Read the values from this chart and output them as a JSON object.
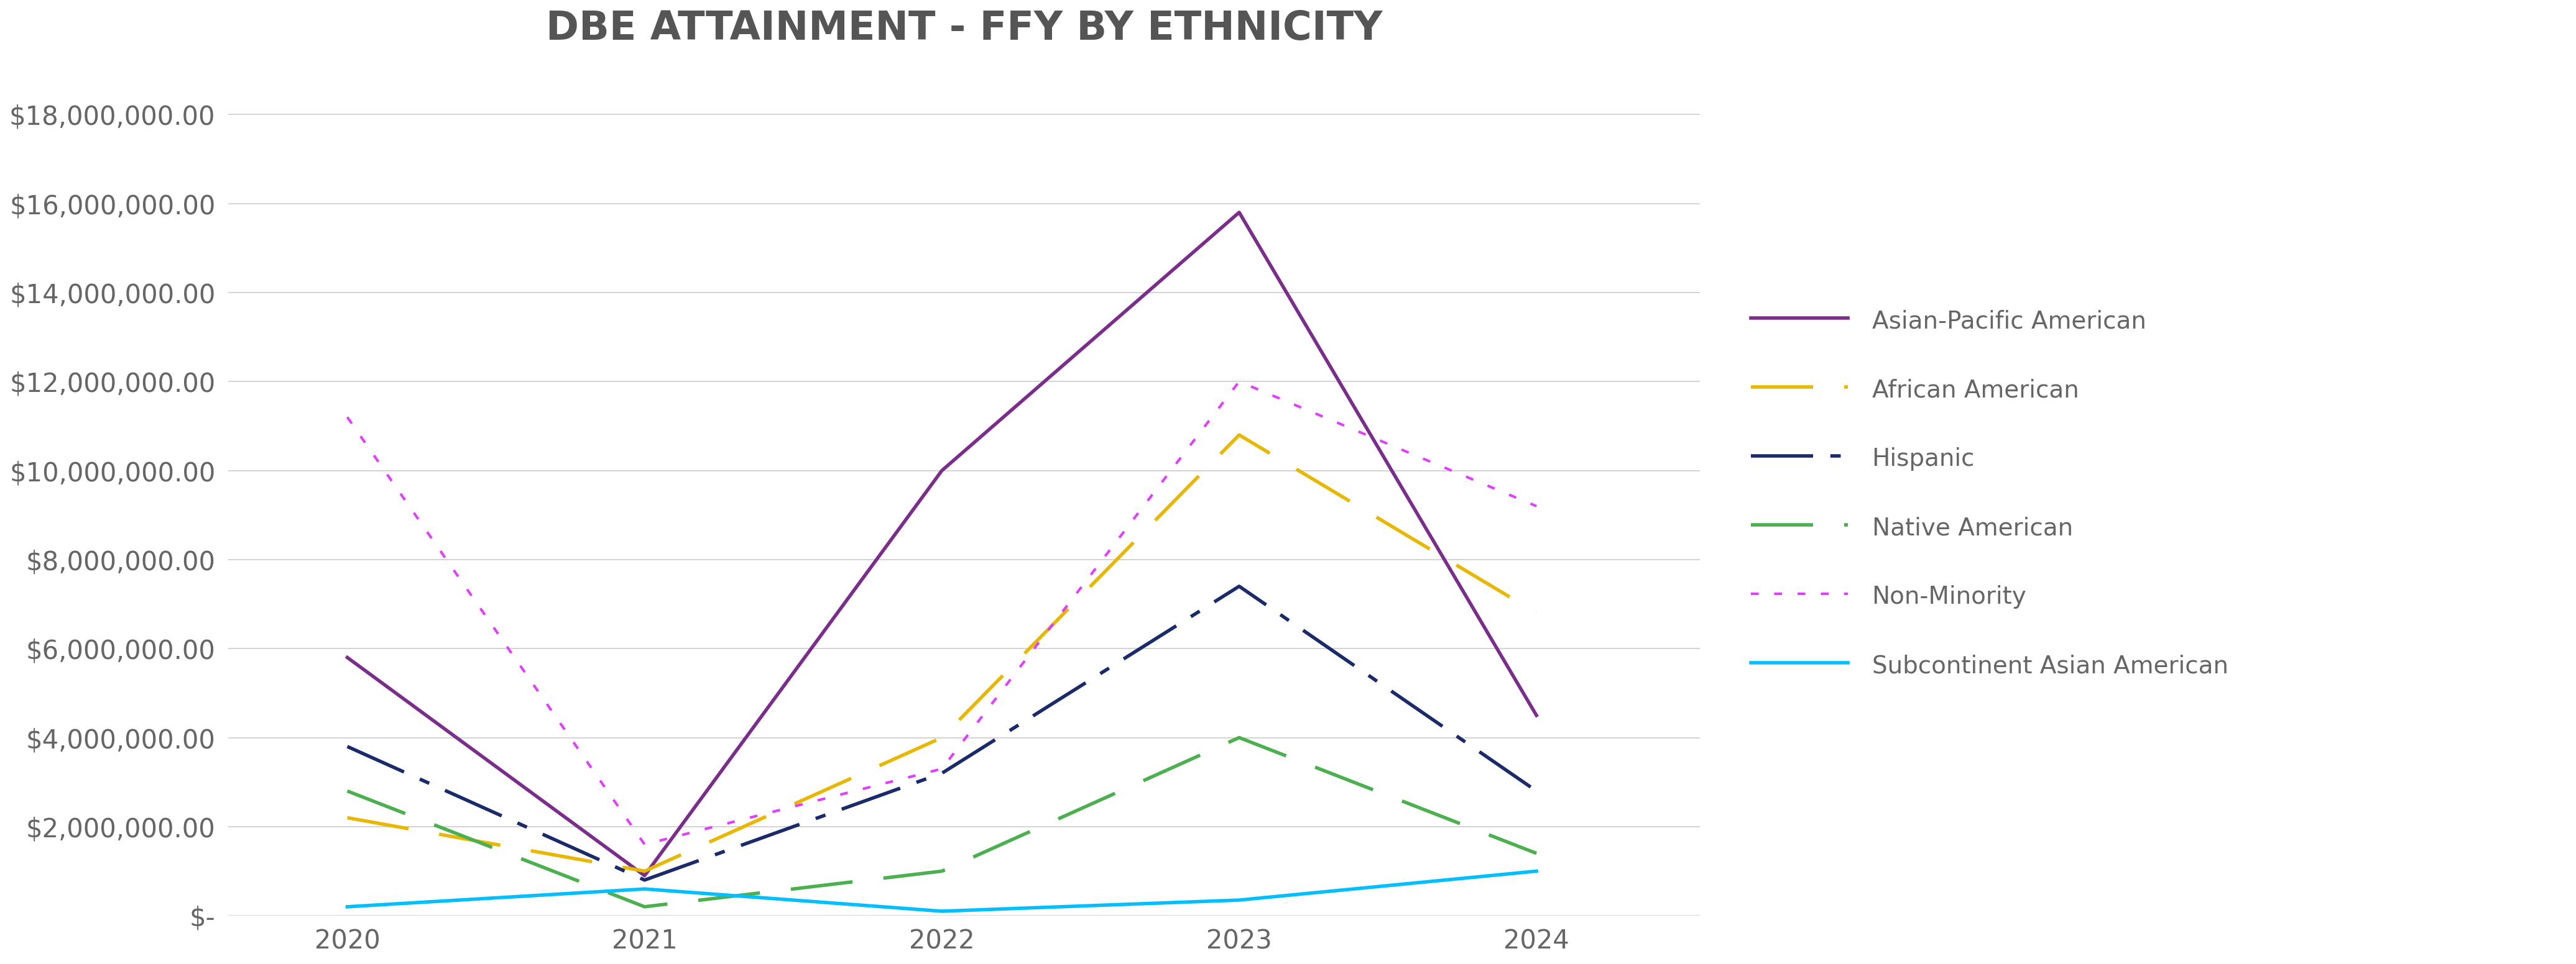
{
  "title": "DBE ATTAINMENT - FFY BY ETHNICITY",
  "years": [
    2020,
    2021,
    2022,
    2023,
    2024
  ],
  "series": {
    "Asian-Pacific American": {
      "values": [
        5800000,
        900000,
        10000000,
        15800000,
        4500000
      ],
      "color": "#7B2D8B",
      "lw": 4.0,
      "dashes": null
    },
    "African American": {
      "values": [
        2200000,
        1000000,
        4000000,
        10800000,
        6800000
      ],
      "color": "#E8B800",
      "lw": 4.0,
      "dashes": [
        18,
        9
      ]
    },
    "Hispanic": {
      "values": [
        3800000,
        800000,
        3200000,
        7400000,
        2800000
      ],
      "color": "#1B2A6B",
      "lw": 4.0,
      "dashes": [
        18,
        5,
        3,
        5
      ]
    },
    "Native American": {
      "values": [
        2800000,
        200000,
        1000000,
        4000000,
        1400000
      ],
      "color": "#4CAF50",
      "lw": 4.0,
      "dashes": [
        18,
        9
      ]
    },
    "Non-Minority": {
      "values": [
        11200000,
        1600000,
        3300000,
        12000000,
        9200000
      ],
      "color": "#E040FB",
      "lw": 3.0,
      "dashes": [
        3,
        6
      ]
    },
    "Subcontinent Asian American": {
      "values": [
        200000,
        600000,
        100000,
        350000,
        1000000
      ],
      "color": "#00BFFF",
      "lw": 4.0,
      "dashes": null
    }
  },
  "ylim": [
    0,
    19000000
  ],
  "yticks": [
    0,
    2000000,
    4000000,
    6000000,
    8000000,
    10000000,
    12000000,
    14000000,
    16000000,
    18000000
  ],
  "background_color": "#FFFFFF",
  "grid_color": "#CCCCCC",
  "title_fontsize": 46,
  "tick_fontsize": 30,
  "legend_fontsize": 28
}
